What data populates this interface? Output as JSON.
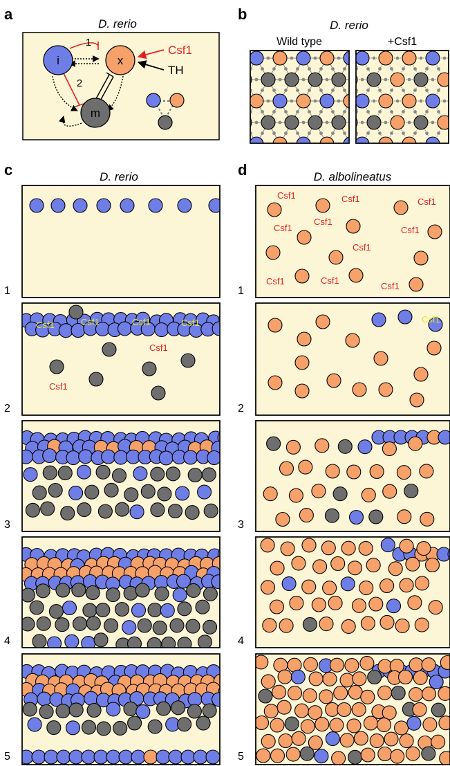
{
  "colors": {
    "iridophore": "#6f7ee6",
    "xanthophore": "#f6a16a",
    "melanophore": "#6e6e6e",
    "panel_bg": "#fdf6d6",
    "red": "#e32020",
    "yellow_label": "#e6e62a"
  },
  "panel_a": {
    "label": "a",
    "title": "D. rerio",
    "nodes": {
      "i": "i",
      "x": "x",
      "m": "m"
    },
    "edges": {
      "one": "1",
      "two": "2"
    },
    "regulators": {
      "csf1": "Csf1",
      "th": "TH"
    }
  },
  "panel_b": {
    "label": "b",
    "title": "D. rerio",
    "left_title": "Wild type",
    "right_title": "+Csf1"
  },
  "panel_c": {
    "label": "c",
    "title": "D. rerio",
    "stage_labels": [
      "1",
      "2",
      "3",
      "4",
      "5"
    ],
    "csf1_labels": [
      "Csf1",
      "Csf1",
      "Csf1",
      "Csf1",
      "Csf1",
      "Csf1"
    ]
  },
  "panel_d": {
    "label": "d",
    "title": "D. albolineatus",
    "stage_labels": [
      "1",
      "2",
      "3",
      "4",
      "5"
    ],
    "csf1_labels": [
      "Csf1",
      "Csf1",
      "Csf1",
      "Csf1",
      "Csf1",
      "Csf1",
      "Csf1",
      "Csf1",
      "Csf1",
      "Csf1"
    ],
    "csf1_label_stage2": "Csf1"
  }
}
